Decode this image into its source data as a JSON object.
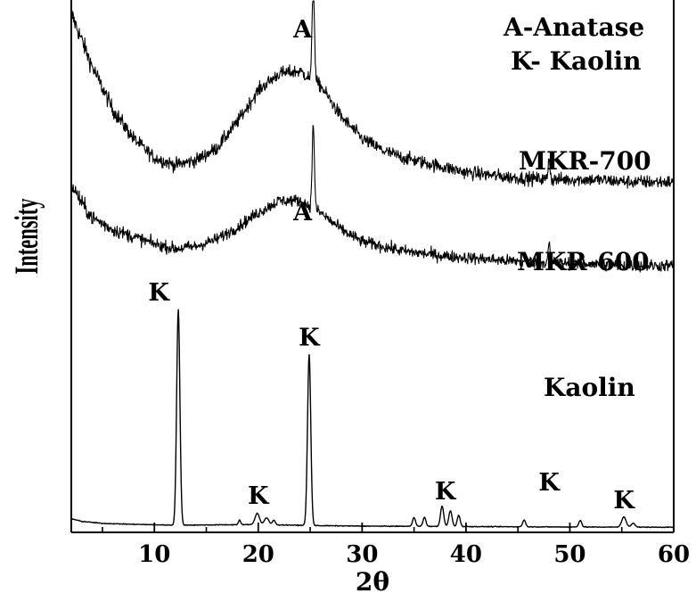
{
  "chart_data": {
    "type": "line",
    "xlabel": "2θ",
    "ylabel": "Intensity",
    "xlim": [
      2,
      60
    ],
    "xticks": [
      10,
      20,
      30,
      40,
      50,
      60
    ],
    "x_minor_step": 5,
    "yticks_shown": false,
    "legend": [
      "A-Anatase",
      "K- Kaolin"
    ],
    "legend_placement": "top-right",
    "series": [
      {
        "name": "MKR-700",
        "label_position": "right",
        "noise": 0.9,
        "points": [
          [
            2,
            100
          ],
          [
            4,
            78
          ],
          [
            6,
            60
          ],
          [
            8,
            48
          ],
          [
            10,
            40
          ],
          [
            12,
            37
          ],
          [
            14,
            39
          ],
          [
            16,
            44
          ],
          [
            18,
            55
          ],
          [
            20,
            68
          ],
          [
            22,
            75
          ],
          [
            24,
            76
          ],
          [
            26,
            70
          ],
          [
            28,
            57
          ],
          [
            30,
            48
          ],
          [
            32,
            43
          ],
          [
            34,
            40
          ],
          [
            36,
            38
          ],
          [
            38,
            36
          ],
          [
            40,
            34
          ],
          [
            44,
            32
          ],
          [
            48,
            31
          ],
          [
            52,
            31
          ],
          [
            56,
            30
          ],
          [
            60,
            30
          ]
        ],
        "peaks": [
          {
            "x": 25.3,
            "h": 44,
            "w": 0.15
          },
          {
            "x": 48.0,
            "h": 10,
            "w": 0.12
          }
        ]
      },
      {
        "name": "MKR-600",
        "label_position": "right",
        "noise": 0.8,
        "points": [
          [
            2,
            57
          ],
          [
            3,
            49
          ],
          [
            4,
            43
          ],
          [
            6,
            38
          ],
          [
            8,
            35
          ],
          [
            10,
            32
          ],
          [
            12,
            30
          ],
          [
            14,
            31
          ],
          [
            16,
            34
          ],
          [
            18,
            39
          ],
          [
            20,
            45
          ],
          [
            22,
            50
          ],
          [
            24,
            50
          ],
          [
            26,
            45
          ],
          [
            28,
            38
          ],
          [
            30,
            33
          ],
          [
            34,
            29
          ],
          [
            38,
            27
          ],
          [
            44,
            25
          ],
          [
            50,
            24
          ],
          [
            55,
            23
          ],
          [
            60,
            23
          ]
        ],
        "peaks": [
          {
            "x": 25.3,
            "h": 35,
            "w": 0.15
          },
          {
            "x": 48.0,
            "h": 8,
            "w": 0.12
          }
        ]
      },
      {
        "name": "Kaolin",
        "label_position": "right",
        "noise": 0.2,
        "points": [
          [
            2,
            4.5
          ],
          [
            3,
            3.3
          ],
          [
            5,
            2.4
          ],
          [
            8,
            2.0
          ],
          [
            12,
            1.6
          ],
          [
            20,
            1.9
          ],
          [
            26,
            1.4
          ],
          [
            30,
            1.2
          ],
          [
            40,
            1.0
          ],
          [
            50,
            0.8
          ],
          [
            60,
            0.7
          ]
        ],
        "peaks": [
          {
            "x": 12.3,
            "h": 96,
            "w": 0.22
          },
          {
            "x": 18.2,
            "h": 2,
            "w": 0.15
          },
          {
            "x": 19.9,
            "h": 5,
            "w": 0.3
          },
          {
            "x": 20.8,
            "h": 3,
            "w": 0.3
          },
          {
            "x": 21.5,
            "h": 2,
            "w": 0.2
          },
          {
            "x": 24.9,
            "h": 76,
            "w": 0.22
          },
          {
            "x": 35.0,
            "h": 4,
            "w": 0.2
          },
          {
            "x": 36.0,
            "h": 4,
            "w": 0.2
          },
          {
            "x": 37.7,
            "h": 9,
            "w": 0.22
          },
          {
            "x": 38.5,
            "h": 7,
            "w": 0.22
          },
          {
            "x": 39.3,
            "h": 5,
            "w": 0.2
          },
          {
            "x": 45.6,
            "h": 3,
            "w": 0.2
          },
          {
            "x": 51.0,
            "h": 3,
            "w": 0.2
          },
          {
            "x": 55.2,
            "h": 4.5,
            "w": 0.3
          },
          {
            "x": 56.1,
            "h": 1.8,
            "w": 0.25
          }
        ]
      }
    ],
    "annotations": [
      {
        "text": "A",
        "x": 25.3,
        "series": "MKR-700"
      },
      {
        "text": "A",
        "x": 25.3,
        "series": "MKR-600"
      },
      {
        "text": "K",
        "x": 12.3,
        "series": "Kaolin"
      },
      {
        "text": "K",
        "x": 20.0,
        "series": "Kaolin"
      },
      {
        "text": "K",
        "x": 24.9,
        "series": "Kaolin"
      },
      {
        "text": "K",
        "x": 38.0,
        "series": "Kaolin"
      },
      {
        "text": "K",
        "x": 48.0,
        "series": "Kaolin"
      },
      {
        "text": "K",
        "x": 55.2,
        "series": "Kaolin"
      }
    ]
  }
}
